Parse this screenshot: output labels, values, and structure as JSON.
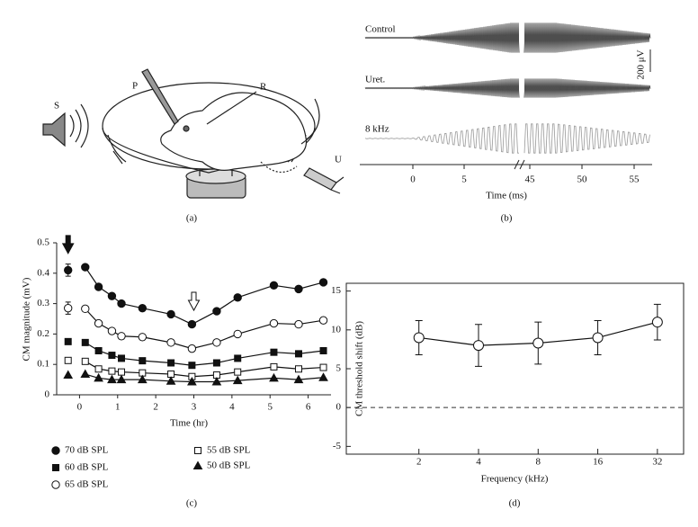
{
  "figure_a": {
    "label": "(a)",
    "speaker": "S",
    "pipette": "P",
    "electrode": "R",
    "syringe": "U"
  },
  "figure_b": {
    "label": "(b)",
    "traces": [
      "Control",
      "Uret.",
      "8 kHz"
    ],
    "scale": "200 μV",
    "x_tick_labels": [
      0,
      5,
      45,
      50,
      55
    ],
    "xlabel": "Time (ms)"
  },
  "chart_data": [
    {
      "type": "line",
      "panel": "(c)",
      "xlabel": "Time (hr)",
      "ylabel": "CM magnitude (mV)",
      "xlim": [
        -0.6,
        6.6
      ],
      "xticks": [
        0,
        1,
        2,
        3,
        4,
        5,
        6
      ],
      "ylim": [
        0,
        0.5
      ],
      "yticks": [
        0,
        0.1,
        0.2,
        0.3,
        0.4,
        0.5
      ],
      "x": [
        0.15,
        0.5,
        0.85,
        1.1,
        1.65,
        2.4,
        2.95,
        3.6,
        4.15,
        5.1,
        5.75,
        6.4
      ],
      "arrows": [
        {
          "x": -0.3,
          "y": 0.465,
          "fill": "#111"
        },
        {
          "x": 3,
          "y": 0.278,
          "fill": "#fff"
        }
      ],
      "series": [
        {
          "name": "70 dB SPL",
          "marker": "circle",
          "color": "#111",
          "fill": "#111",
          "baseline": {
            "x": -0.3,
            "value": 0.41,
            "error": 0.02
          },
          "values": [
            0.42,
            0.355,
            0.325,
            0.3,
            0.285,
            0.265,
            0.232,
            0.275,
            0.32,
            0.36,
            0.348,
            0.37
          ]
        },
        {
          "name": "60 dB SPL",
          "marker": "square",
          "color": "#111",
          "fill": "#111",
          "baseline": {
            "x": -0.3,
            "value": 0.175
          },
          "values": [
            0.172,
            0.145,
            0.13,
            0.12,
            0.112,
            0.105,
            0.097,
            0.105,
            0.12,
            0.14,
            0.135,
            0.145
          ]
        },
        {
          "name": "65 dB SPL",
          "marker": "circle",
          "color": "#111",
          "fill": "#fff",
          "baseline": {
            "x": -0.3,
            "value": 0.285,
            "error": 0.02
          },
          "values": [
            0.283,
            0.235,
            0.21,
            0.193,
            0.19,
            0.172,
            0.152,
            0.172,
            0.2,
            0.235,
            0.232,
            0.245
          ]
        },
        {
          "name": "55 dB SPL",
          "marker": "square",
          "color": "#111",
          "fill": "#fff",
          "baseline": {
            "x": -0.3,
            "value": 0.113
          },
          "values": [
            0.11,
            0.085,
            0.078,
            0.075,
            0.072,
            0.068,
            0.06,
            0.065,
            0.075,
            0.092,
            0.085,
            0.09
          ]
        },
        {
          "name": "50 dB SPL",
          "marker": "triangle",
          "color": "#111",
          "fill": "#111",
          "baseline": {
            "x": -0.3,
            "value": 0.065
          },
          "values": [
            0.068,
            0.055,
            0.05,
            0.05,
            0.05,
            0.045,
            0.043,
            0.043,
            0.047,
            0.055,
            0.05,
            0.057
          ]
        }
      ]
    },
    {
      "type": "errorline",
      "panel": "(d)",
      "xlabel": "Frequency (kHz)",
      "ylabel": "CM threshold shift (dB)",
      "log_x": true,
      "xlim": [
        0.86,
        43.4
      ],
      "xticks": [
        2,
        4,
        8,
        16,
        32
      ],
      "ylim": [
        -6,
        16
      ],
      "yticks": [
        -5,
        0,
        5,
        10,
        15
      ],
      "reference_line": 0,
      "x": [
        2,
        4,
        8,
        16,
        32
      ],
      "series": [
        {
          "marker": "circle",
          "color": "#111",
          "fill": "#fff",
          "values": [
            9,
            8,
            8.3,
            9,
            11
          ],
          "errors": [
            2.2,
            2.7,
            2.7,
            2.2,
            2.3
          ]
        }
      ]
    }
  ]
}
